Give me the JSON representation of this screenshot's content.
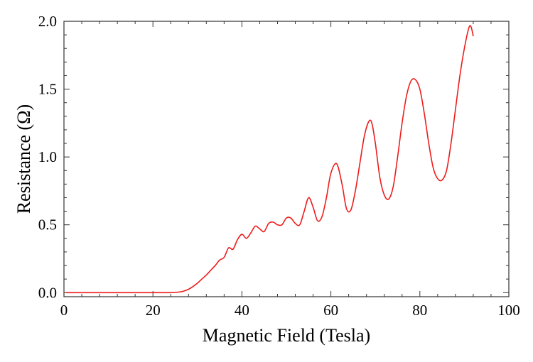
{
  "chart_data": {
    "type": "line",
    "title": "",
    "xlabel": "Magnetic Field (Tesla)",
    "ylabel": "Resistance (Ω)",
    "xlim": [
      0,
      100
    ],
    "ylim": [
      -0.03,
      2.0
    ],
    "x_ticks": [
      0,
      20,
      40,
      60,
      80,
      100
    ],
    "x_tick_labels": [
      "0",
      "20",
      "40",
      "60",
      "80",
      "100"
    ],
    "y_ticks": [
      0.0,
      0.5,
      1.0,
      1.5,
      2.0
    ],
    "y_tick_labels": [
      "0.0",
      "0.5",
      "1.0",
      "1.5",
      "2.0"
    ],
    "grid": false,
    "series": [
      {
        "color": "#ee1c1c",
        "x": [
          0.5,
          5,
          10,
          15,
          20,
          24,
          26,
          27,
          28,
          29,
          30,
          31,
          32,
          33,
          34,
          35,
          36,
          37,
          38,
          39,
          40,
          41,
          42,
          43,
          44,
          45,
          46,
          47,
          48,
          49,
          50,
          51,
          52,
          53,
          54,
          55,
          56,
          57,
          58,
          59,
          60,
          61.3,
          62.5,
          63.5,
          64.5,
          65.5,
          66.5,
          67.5,
          68.5,
          69.2,
          70,
          71,
          72,
          73,
          74,
          75,
          76,
          77,
          78,
          79,
          80,
          81,
          82,
          83,
          84,
          85,
          86,
          87,
          88,
          89,
          90,
          91,
          91.5,
          92
        ],
        "y": [
          0.0,
          0.0,
          0.0,
          0.0,
          0.0,
          0.0,
          0.005,
          0.012,
          0.025,
          0.045,
          0.07,
          0.1,
          0.13,
          0.165,
          0.2,
          0.24,
          0.26,
          0.33,
          0.32,
          0.39,
          0.43,
          0.4,
          0.44,
          0.49,
          0.47,
          0.45,
          0.51,
          0.52,
          0.5,
          0.5,
          0.55,
          0.55,
          0.51,
          0.5,
          0.6,
          0.7,
          0.63,
          0.53,
          0.56,
          0.7,
          0.88,
          0.95,
          0.8,
          0.62,
          0.61,
          0.75,
          0.95,
          1.15,
          1.26,
          1.25,
          1.1,
          0.85,
          0.72,
          0.69,
          0.78,
          1.0,
          1.25,
          1.45,
          1.56,
          1.57,
          1.5,
          1.32,
          1.1,
          0.92,
          0.84,
          0.83,
          0.9,
          1.1,
          1.35,
          1.6,
          1.8,
          1.95,
          1.96,
          1.89
        ]
      }
    ]
  }
}
